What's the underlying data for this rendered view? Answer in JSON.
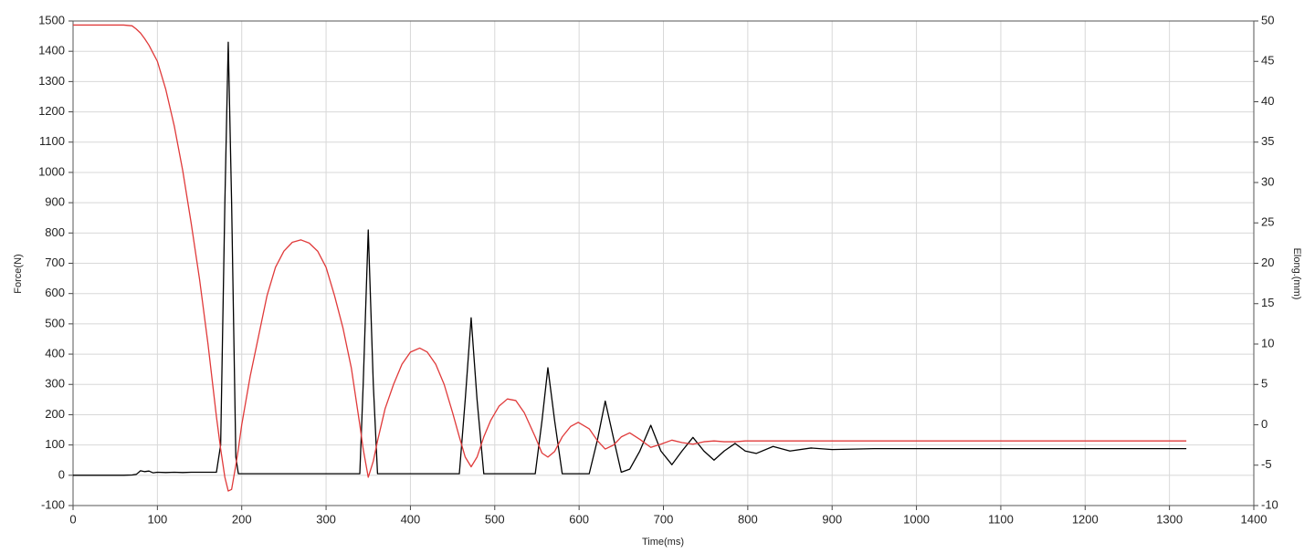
{
  "chart_data": {
    "type": "line",
    "xlabel": "Time(ms)",
    "ylabel": "Force(N)",
    "y2label": "Elong.(mm)",
    "x": [
      0,
      20,
      40,
      60,
      70,
      75,
      80,
      85,
      90,
      95,
      100,
      110,
      120,
      130,
      140,
      150,
      160,
      170,
      175,
      180,
      184,
      188,
      193,
      196,
      200,
      210,
      220,
      230,
      240,
      250,
      260,
      270,
      280,
      290,
      300,
      310,
      320,
      330,
      340,
      344,
      350,
      356,
      361,
      370,
      380,
      390,
      400,
      411,
      420,
      430,
      440,
      450,
      458,
      465,
      472,
      479,
      487,
      495,
      505,
      515,
      525,
      535,
      548,
      556,
      563,
      571,
      580,
      590,
      599,
      612,
      622,
      631,
      641,
      650,
      660,
      672,
      685,
      697,
      710,
      722,
      735,
      748,
      760,
      772,
      785,
      797,
      810,
      830,
      850,
      875,
      900,
      950,
      1000,
      1100,
      1200,
      1320
    ],
    "series": [
      {
        "color": "#000000",
        "values": [
          0,
          0,
          0,
          0,
          1,
          3,
          15,
          12,
          14,
          8,
          10,
          9,
          10,
          9,
          10,
          10,
          10,
          10,
          100,
          900,
          1430,
          900,
          60,
          5,
          5,
          5,
          5,
          5,
          5,
          5,
          5,
          5,
          5,
          5,
          5,
          5,
          5,
          5,
          5,
          300,
          810,
          300,
          5,
          5,
          5,
          5,
          5,
          5,
          5,
          5,
          5,
          5,
          5,
          250,
          520,
          250,
          5,
          5,
          5,
          5,
          5,
          5,
          5,
          180,
          355,
          180,
          5,
          5,
          5,
          5,
          120,
          245,
          120,
          10,
          20,
          80,
          165,
          80,
          35,
          80,
          125,
          80,
          50,
          80,
          105,
          80,
          72,
          95,
          80,
          90,
          85,
          88,
          88,
          88,
          88,
          88
        ]
      },
      {
        "color": "#e03a3a",
        "axis": "y2",
        "values": [
          49.5,
          49.5,
          49.5,
          49.5,
          49.4,
          49,
          48.5,
          47.8,
          47,
          46,
          45,
          41.5,
          37,
          31.5,
          25,
          18,
          10,
          1,
          -3,
          -6.5,
          -8.2,
          -8,
          -5,
          -3,
          0,
          6,
          11,
          16,
          19.5,
          21.5,
          22.6,
          22.9,
          22.5,
          21.5,
          19.5,
          16,
          12,
          7,
          0,
          -3,
          -6.5,
          -4.5,
          -2,
          2,
          5,
          7.5,
          9,
          9.5,
          9,
          7.5,
          5,
          1.5,
          -1.5,
          -4,
          -5.2,
          -4,
          -1.5,
          0.5,
          2.3,
          3.2,
          3,
          1.5,
          -1.5,
          -3.5,
          -4,
          -3.3,
          -1.5,
          -0.2,
          0.3,
          -0.5,
          -2,
          -3,
          -2.5,
          -1.5,
          -1,
          -1.8,
          -2.8,
          -2.4,
          -1.9,
          -2.2,
          -2.4,
          -2.1,
          -2,
          -2.1,
          -2.1,
          -2,
          -2,
          -2,
          -2,
          -2,
          -2,
          -2,
          -2,
          -2,
          -2,
          -2
        ]
      }
    ],
    "xlim": [
      0,
      1400
    ],
    "xticks": [
      0,
      100,
      200,
      300,
      400,
      500,
      600,
      700,
      800,
      900,
      1000,
      1100,
      1200,
      1300,
      1400
    ],
    "ylim": [
      -100,
      1500
    ],
    "yticks": [
      -100,
      0,
      100,
      200,
      300,
      400,
      500,
      600,
      700,
      800,
      900,
      1000,
      1100,
      1200,
      1300,
      1400,
      1500
    ],
    "y2lim": [
      -10,
      50
    ],
    "y2ticks": [
      -10,
      -5,
      0,
      5,
      10,
      15,
      20,
      25,
      30,
      35,
      40,
      45,
      50
    ],
    "grid": true
  }
}
